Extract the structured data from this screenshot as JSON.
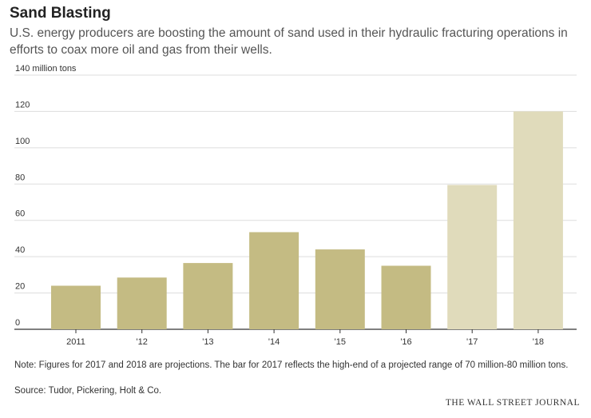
{
  "title": "Sand Blasting",
  "subtitle": "U.S. energy producers are boosting the amount of sand used in their hydraulic fracturing operations in efforts to coax more oil and gas from their wells.",
  "note": "Note: Figures for 2017 and 2018 are projections. The bar for 2017 reflects the high-end of a projected range of 70 million-80 million tons.",
  "source": "Source: Tudor, Pickering, Holt & Co.",
  "brand": "THE WALL STREET JOURNAL",
  "colors": {
    "actual": "#c4bb83",
    "projection": "#e0dbbb",
    "grid": "#dddddd",
    "axis": "#333333"
  },
  "chart_data": {
    "type": "bar",
    "categories": [
      "2011",
      "'12",
      "'13",
      "'14",
      "'15",
      "'16",
      "'17",
      "'18"
    ],
    "values": [
      24,
      28.5,
      36.5,
      53.5,
      44,
      35,
      79.5,
      120
    ],
    "projection": [
      false,
      false,
      false,
      false,
      false,
      false,
      true,
      true
    ],
    "ylim": [
      0,
      140
    ],
    "yticks": [
      "0",
      "20",
      "40",
      "60",
      "80",
      "100",
      "120",
      "140 million tons"
    ],
    "ytick_values": [
      0,
      20,
      40,
      60,
      80,
      100,
      120,
      140
    ],
    "grid": true
  }
}
